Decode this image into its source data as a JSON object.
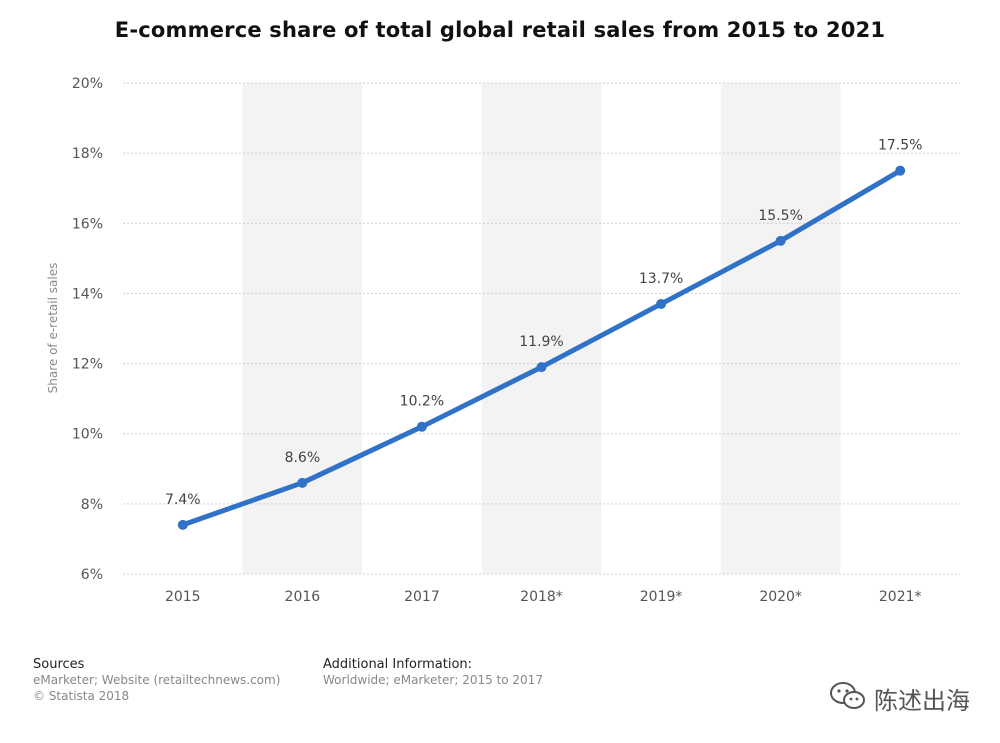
{
  "title": "E-commerce share of total global retail sales from 2015 to 2021",
  "chart_data": {
    "type": "line",
    "title": "E-commerce share of total global retail sales from 2015 to 2021",
    "xlabel": "",
    "ylabel": "Share of e-retail sales",
    "categories": [
      "2015",
      "2016",
      "2017",
      "2018*",
      "2019*",
      "2020*",
      "2021*"
    ],
    "series": [
      {
        "values": [
          7.4,
          8.6,
          10.2,
          11.9,
          13.7,
          15.5,
          17.5
        ],
        "data_labels": [
          "7.4%",
          "8.6%",
          "10.2%",
          "11.9%",
          "13.7%",
          "15.5%",
          "17.5%"
        ],
        "color": "#2f72c8"
      }
    ],
    "ylim": [
      6,
      20
    ],
    "yticks": [
      6,
      8,
      10,
      12,
      14,
      16,
      18,
      20
    ],
    "ytick_labels": [
      "6%",
      "8%",
      "10%",
      "12%",
      "14%",
      "16%",
      "18%",
      "20%"
    ],
    "grid": true
  },
  "footer": {
    "sources_heading": "Sources",
    "sources_lines": [
      "eMarketer; Website (retailtechnews.com)",
      "© Statista 2018"
    ],
    "additional_heading": "Additional Information:",
    "additional_lines": [
      "Worldwide; eMarketer; 2015 to 2017"
    ]
  },
  "watermark": {
    "text": "陈述出海",
    "icon": "wechat-icon"
  }
}
